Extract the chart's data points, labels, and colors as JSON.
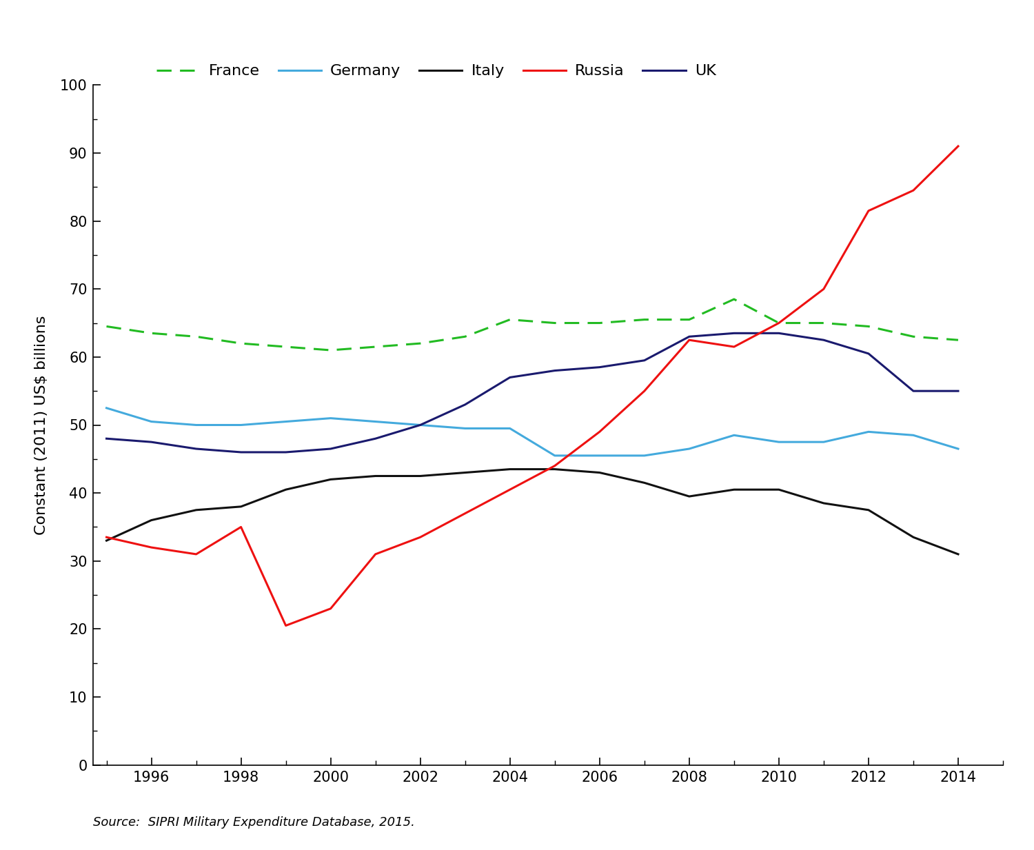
{
  "years": [
    1995,
    1996,
    1997,
    1998,
    1999,
    2000,
    2001,
    2002,
    2003,
    2004,
    2005,
    2006,
    2007,
    2008,
    2009,
    2010,
    2011,
    2012,
    2013,
    2014
  ],
  "france": [
    64.5,
    63.5,
    63.0,
    62.0,
    61.5,
    61.0,
    61.5,
    62.0,
    63.0,
    65.5,
    65.0,
    65.0,
    65.5,
    65.5,
    68.5,
    65.0,
    65.0,
    64.5,
    63.0,
    62.5
  ],
  "germany": [
    52.5,
    50.5,
    50.0,
    50.0,
    50.5,
    51.0,
    50.5,
    50.0,
    49.5,
    49.5,
    45.5,
    45.5,
    45.5,
    46.5,
    48.5,
    47.5,
    47.5,
    49.0,
    48.5,
    46.5
  ],
  "italy": [
    33.0,
    36.0,
    37.5,
    38.0,
    40.5,
    42.0,
    42.5,
    42.5,
    43.0,
    43.5,
    43.5,
    43.0,
    41.5,
    39.5,
    40.5,
    40.5,
    38.5,
    37.5,
    33.5,
    31.0
  ],
  "russia": [
    33.5,
    32.0,
    31.0,
    35.0,
    20.5,
    23.0,
    31.0,
    33.5,
    37.0,
    40.5,
    44.0,
    49.0,
    55.0,
    62.5,
    61.5,
    65.0,
    70.0,
    81.5,
    84.5,
    91.0
  ],
  "uk": [
    48.0,
    47.5,
    46.5,
    46.0,
    46.0,
    46.5,
    48.0,
    50.0,
    53.0,
    57.0,
    58.0,
    58.5,
    59.5,
    63.0,
    63.5,
    63.5,
    62.5,
    60.5,
    55.0,
    55.0
  ],
  "line_colors": {
    "france": "#22bb22",
    "germany": "#44aadd",
    "italy": "#111111",
    "russia": "#ee1111",
    "uk": "#1a1a6e"
  },
  "ylabel": "Constant (2011) US$ billions",
  "source_text": "Source:  SIPRI Military Expenditure Database, 2015.",
  "ylim": [
    0,
    100
  ],
  "yticks": [
    0,
    10,
    20,
    30,
    40,
    50,
    60,
    70,
    80,
    90,
    100
  ],
  "xticks": [
    1996,
    1998,
    2000,
    2002,
    2004,
    2006,
    2008,
    2010,
    2012,
    2014
  ],
  "legend_labels": [
    "France",
    "Germany",
    "Italy",
    "Russia",
    "UK"
  ]
}
